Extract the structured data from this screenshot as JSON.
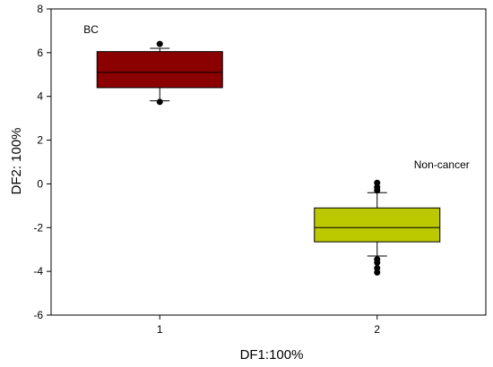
{
  "chart_data": {
    "type": "box",
    "xlabel": "DF1:100%",
    "ylabel": "DF2: 100%",
    "ylim": [
      -6,
      8
    ],
    "yticks": [
      "-6",
      "-4",
      "-2",
      "0",
      "2",
      "4",
      "6",
      "8"
    ],
    "xlim": [
      0.5,
      2.5
    ],
    "xticks": [
      "1",
      "2"
    ],
    "grid": false,
    "legend": "none",
    "boxes": [
      {
        "x": 1,
        "annotation": "BC",
        "color": "#8b0000",
        "whisker_low": 3.8,
        "q1": 4.4,
        "median": 5.1,
        "q3": 6.05,
        "whisker_high": 6.2,
        "outliers": [
          6.4,
          3.75
        ]
      },
      {
        "x": 2,
        "annotation": "Non-cancer",
        "color": "#bcc800",
        "whisker_low": -3.3,
        "q1": -2.65,
        "median": -2.0,
        "q3": -1.1,
        "whisker_high": -0.4,
        "outliers": [
          0.05,
          -0.15,
          -0.3,
          -3.45,
          -3.6,
          -3.85,
          -4.05
        ]
      }
    ]
  }
}
